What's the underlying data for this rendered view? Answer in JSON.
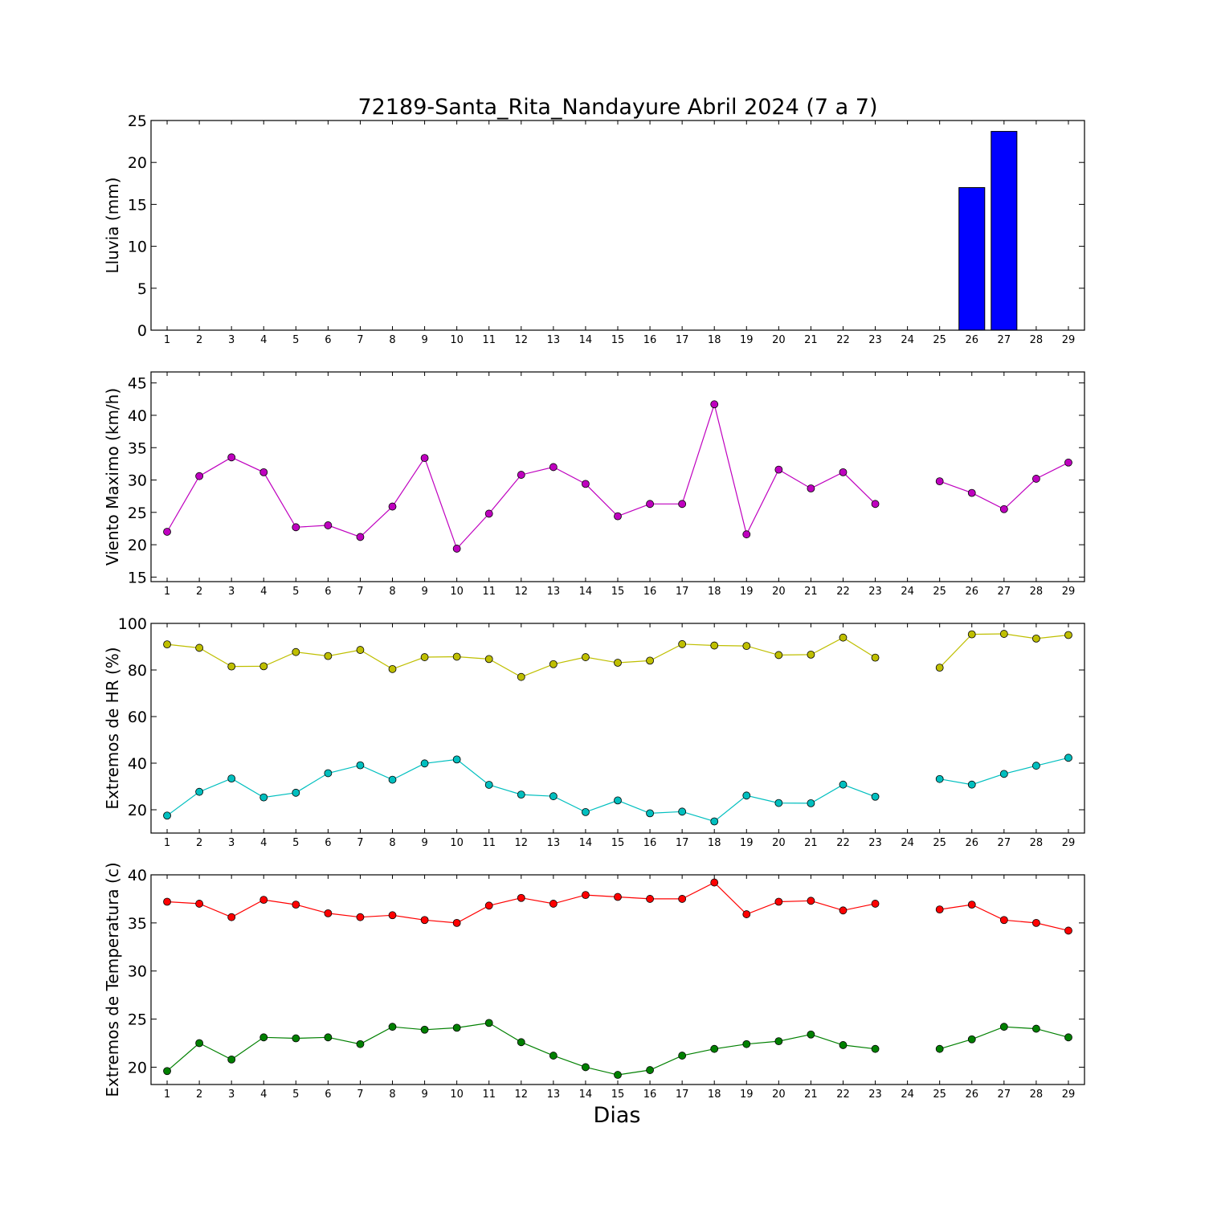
{
  "title": "72189-Santa_Rita_Nandayure Abril 2024  (7 a 7)",
  "xlabel": "Dias",
  "chart_data": [
    {
      "type": "bar",
      "ylabel": "Lluvia (mm)",
      "ylim": [
        0,
        25
      ],
      "yticks": [
        0,
        5,
        10,
        15,
        20,
        25
      ],
      "x": [
        1,
        2,
        3,
        4,
        5,
        6,
        7,
        8,
        9,
        10,
        11,
        12,
        13,
        14,
        15,
        16,
        17,
        18,
        19,
        20,
        21,
        22,
        23,
        24,
        25,
        26,
        27,
        28,
        29
      ],
      "xlim": [
        0.5,
        29.5
      ],
      "series": [
        {
          "color": "#0000ff",
          "values": [
            0,
            0,
            0,
            0,
            0,
            0,
            0,
            0,
            0,
            0,
            0,
            0,
            0,
            0,
            0,
            0,
            0,
            0,
            0,
            0,
            0,
            0,
            0,
            0,
            0,
            17.0,
            23.7,
            0,
            0
          ]
        }
      ]
    },
    {
      "type": "line",
      "ylabel": "Viento Maximo (km/h)",
      "ylim": [
        14.3,
        46.7
      ],
      "yticks": [
        15,
        20,
        25,
        30,
        35,
        40,
        45
      ],
      "x": [
        1,
        2,
        3,
        4,
        5,
        6,
        7,
        8,
        9,
        10,
        11,
        12,
        13,
        14,
        15,
        16,
        17,
        18,
        19,
        20,
        21,
        22,
        23,
        24,
        25,
        26,
        27,
        28,
        29
      ],
      "xlim": [
        0.5,
        29.5
      ],
      "series": [
        {
          "color": "#bf00bf",
          "values": [
            22.0,
            30.6,
            33.5,
            31.2,
            22.7,
            23.0,
            21.2,
            25.9,
            33.4,
            19.4,
            24.8,
            30.8,
            32.0,
            29.4,
            24.4,
            26.3,
            26.3,
            41.7,
            21.6,
            31.6,
            28.7,
            31.2,
            26.3,
            null,
            29.8,
            28.0,
            25.5,
            30.2,
            32.7
          ]
        }
      ]
    },
    {
      "type": "line",
      "ylabel": "Extremos de HR (%)",
      "ylim": [
        10,
        100
      ],
      "yticks": [
        20,
        40,
        60,
        80,
        100
      ],
      "x": [
        1,
        2,
        3,
        4,
        5,
        6,
        7,
        8,
        9,
        10,
        11,
        12,
        13,
        14,
        15,
        16,
        17,
        18,
        19,
        20,
        21,
        22,
        23,
        24,
        25,
        26,
        27,
        28,
        29
      ],
      "xlim": [
        0.5,
        29.5
      ],
      "series": [
        {
          "color": "#bfbf00",
          "values": [
            91,
            89.5,
            81.5,
            81.6,
            87.7,
            86,
            88.6,
            80.4,
            85.5,
            85.7,
            84.7,
            77,
            82.5,
            85.5,
            83.1,
            84,
            91.1,
            90.5,
            90.3,
            86.4,
            86.6,
            93.9,
            85.3,
            null,
            81,
            95.3,
            95.5,
            93.5,
            95
          ]
        },
        {
          "color": "#00bfbf",
          "values": [
            17.5,
            27.7,
            33.4,
            25.3,
            27.3,
            35.7,
            39.1,
            32.9,
            39.9,
            41.6,
            30.7,
            26.5,
            25.8,
            19,
            24,
            18.5,
            19.2,
            15,
            26.1,
            22.9,
            22.8,
            30.8,
            25.6,
            null,
            33.2,
            30.8,
            35.4,
            38.9,
            42.3
          ]
        }
      ]
    },
    {
      "type": "line",
      "ylabel": "Extremos de Temperatura (c)",
      "ylim": [
        18.2,
        40
      ],
      "yticks": [
        20,
        25,
        30,
        35,
        40
      ],
      "x": [
        1,
        2,
        3,
        4,
        5,
        6,
        7,
        8,
        9,
        10,
        11,
        12,
        13,
        14,
        15,
        16,
        17,
        18,
        19,
        20,
        21,
        22,
        23,
        24,
        25,
        26,
        27,
        28,
        29
      ],
      "xlim": [
        0.5,
        29.5
      ],
      "series": [
        {
          "color": "#ff0000",
          "values": [
            37.2,
            37.0,
            35.6,
            37.4,
            36.9,
            36.0,
            35.6,
            35.8,
            35.3,
            35.0,
            36.8,
            37.6,
            37.0,
            37.9,
            37.7,
            37.5,
            37.5,
            39.2,
            35.9,
            37.2,
            37.3,
            36.3,
            37.0,
            null,
            36.4,
            36.9,
            35.3,
            35.0,
            34.2
          ]
        },
        {
          "color": "#008000",
          "values": [
            19.6,
            22.5,
            20.8,
            23.1,
            23.0,
            23.1,
            22.4,
            24.2,
            23.9,
            24.1,
            24.6,
            22.6,
            21.2,
            20.0,
            19.2,
            19.7,
            21.2,
            21.9,
            22.4,
            22.7,
            23.4,
            22.3,
            21.9,
            null,
            21.9,
            22.9,
            24.2,
            24.0,
            23.1
          ]
        }
      ]
    }
  ]
}
